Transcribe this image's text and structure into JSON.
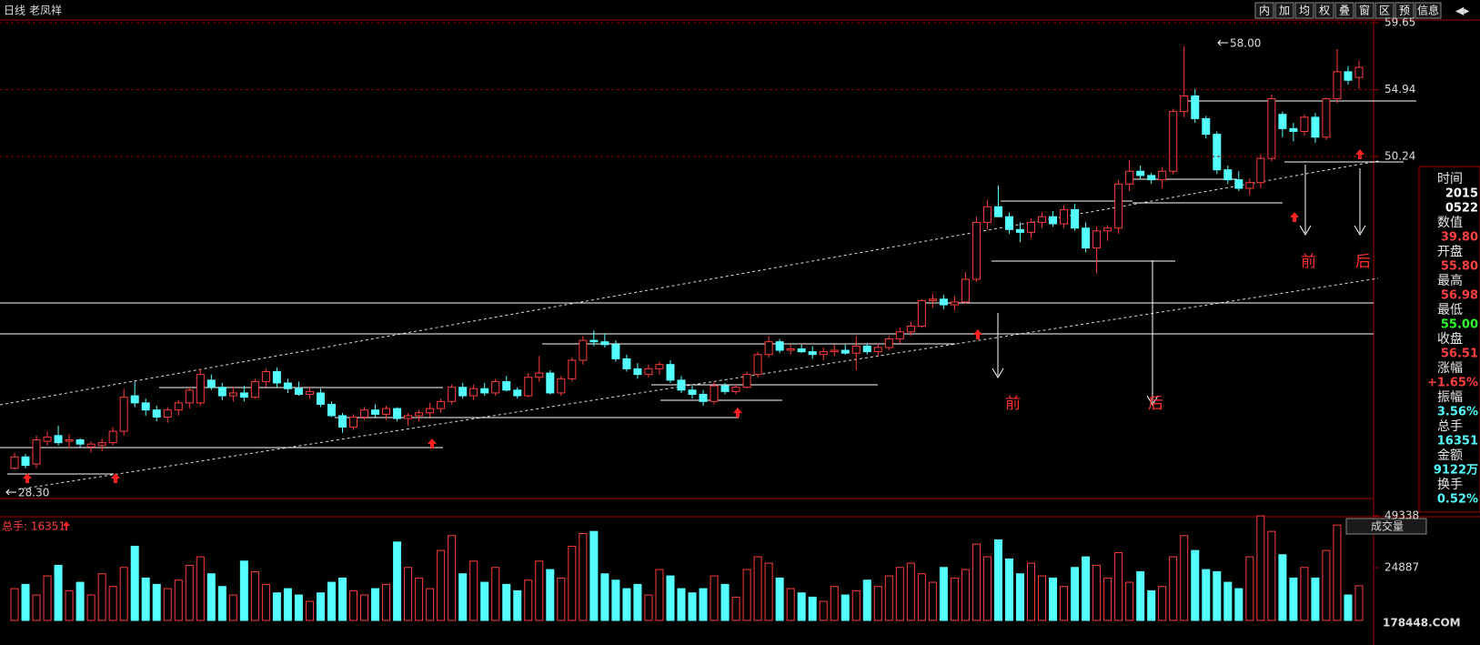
{
  "header": {
    "period": "日线",
    "name": "老凤祥",
    "buttons": [
      "内",
      "加",
      "均",
      "权",
      "叠",
      "窗",
      "区",
      "预",
      "信息"
    ]
  },
  "volume_header": {
    "label": "总手: 16351",
    "indicator": "成交量"
  },
  "info_panel": [
    [
      "时间",
      "2015"
    ],
    [
      "",
      "0522"
    ],
    [
      "数值",
      "39.80"
    ],
    [
      "开盘",
      "55.80"
    ],
    [
      "最高",
      "56.98"
    ],
    [
      "最低",
      "55.00"
    ],
    [
      "收盘",
      "56.51"
    ],
    [
      "涨幅",
      "+1.65%"
    ],
    [
      "振幅",
      "3.56%"
    ],
    [
      "总手",
      "16351"
    ],
    [
      "金额",
      "9122万"
    ],
    [
      "换手",
      "0.52%"
    ]
  ],
  "annotations": {
    "high_label": "58.00",
    "low_label": "28.30",
    "marks": [
      "前",
      "后",
      "前",
      "后"
    ]
  },
  "watermark": "178448.COM",
  "chart_data": [
    {
      "type": "candlestick",
      "up_color": "#ff3c3c",
      "down_color": "#54ffff",
      "grid": true,
      "ylim": [
        26.17,
        59.84
      ],
      "yticks": [
        59.65,
        54.94,
        50.24
      ],
      "open": [
        28.3,
        29.1,
        28.6,
        30.2,
        30.6,
        30.2,
        30.3,
        29.8,
        29.9,
        30.1,
        30.9,
        33.4,
        32.9,
        32.4,
        31.9,
        32.4,
        32.9,
        32.9,
        34.5,
        34.0,
        33.4,
        33.6,
        33.3,
        34.4,
        35.1,
        34.3,
        33.9,
        33.5,
        33.6,
        32.8,
        32.0,
        31.2,
        31.9,
        32.4,
        32.1,
        32.5,
        31.8,
        32.0,
        32.2,
        32.5,
        33.0,
        34.0,
        33.4,
        33.9,
        33.6,
        34.4,
        33.8,
        33.4,
        34.7,
        35.0,
        33.6,
        34.6,
        35.9,
        37.3,
        37.2,
        37.0,
        36.0,
        35.3,
        34.9,
        35.3,
        35.6,
        34.5,
        33.8,
        33.5,
        33.0,
        34.1,
        33.7,
        34.0,
        34.9,
        36.3,
        37.2,
        36.6,
        36.7,
        36.5,
        36.3,
        36.5,
        36.6,
        36.4,
        36.9,
        36.5,
        36.8,
        37.4,
        37.9,
        38.3,
        40.1,
        40.2,
        39.8,
        40.0,
        41.6,
        45.6,
        46.7,
        46.0,
        45.1,
        44.9,
        45.6,
        46.0,
        45.5,
        46.5,
        45.2,
        43.8,
        45.0,
        45.2,
        48.3,
        49.2,
        48.9,
        48.6,
        49.2,
        53.4,
        54.5,
        52.9,
        51.8,
        49.3,
        48.6,
        48.0,
        48.4,
        50.1,
        53.2,
        52.2,
        52.0,
        53.0,
        51.6,
        54.3,
        56.2,
        55.8
      ],
      "high": [
        29.4,
        29.3,
        30.6,
        30.9,
        31.3,
        30.7,
        30.4,
        30.2,
        30.4,
        31.2,
        33.9,
        34.4,
        33.2,
        32.7,
        32.6,
        33.1,
        34.0,
        35.3,
        34.9,
        34.3,
        34.0,
        34.1,
        34.6,
        35.3,
        35.4,
        34.6,
        34.4,
        34.0,
        33.9,
        33.0,
        32.2,
        32.1,
        32.6,
        32.8,
        32.7,
        32.6,
        32.2,
        32.4,
        32.9,
        33.2,
        34.2,
        34.3,
        34.2,
        34.3,
        34.6,
        34.8,
        34.0,
        35.0,
        36.2,
        35.2,
        34.8,
        36.1,
        37.6,
        38.0,
        37.8,
        37.3,
        36.3,
        35.7,
        35.6,
        35.8,
        35.9,
        34.8,
        34.1,
        33.8,
        34.4,
        34.3,
        34.2,
        35.1,
        36.5,
        37.6,
        37.4,
        37.0,
        37.0,
        36.9,
        36.8,
        37.0,
        37.0,
        37.6,
        37.1,
        37.0,
        37.6,
        38.2,
        38.6,
        40.2,
        40.6,
        40.5,
        40.4,
        42.1,
        46.0,
        47.2,
        48.2,
        46.3,
        45.6,
        45.9,
        46.3,
        46.4,
        46.8,
        46.9,
        45.6,
        45.3,
        45.4,
        48.6,
        50.0,
        49.6,
        49.1,
        49.5,
        53.6,
        58.0,
        55.0,
        53.1,
        52.0,
        49.6,
        49.2,
        48.7,
        50.4,
        54.6,
        53.4,
        52.6,
        53.2,
        53.3,
        54.4,
        57.8,
        56.6,
        56.98
      ],
      "low": [
        28.2,
        28.3,
        28.3,
        29.9,
        29.9,
        29.7,
        29.8,
        29.4,
        29.5,
        29.9,
        30.6,
        32.6,
        32.0,
        31.6,
        31.5,
        32.0,
        32.5,
        32.7,
        33.8,
        33.1,
        33.0,
        33.0,
        33.2,
        34.0,
        34.0,
        33.6,
        33.4,
        33.2,
        32.6,
        31.9,
        30.8,
        31.0,
        31.7,
        31.9,
        31.7,
        31.6,
        31.3,
        31.6,
        31.9,
        32.2,
        32.8,
        33.2,
        33.1,
        33.4,
        33.4,
        33.7,
        33.2,
        33.3,
        34.4,
        33.5,
        33.4,
        34.4,
        35.6,
        36.9,
        36.8,
        35.8,
        35.1,
        34.6,
        34.7,
        34.9,
        34.3,
        33.6,
        33.2,
        32.7,
        32.8,
        33.5,
        33.5,
        33.9,
        34.7,
        36.1,
        36.4,
        36.3,
        36.4,
        36.0,
        35.9,
        36.2,
        36.3,
        35.2,
        36.3,
        36.2,
        36.6,
        37.1,
        37.6,
        38.2,
        39.6,
        39.5,
        39.4,
        39.9,
        41.4,
        45.1,
        46.0,
        44.8,
        44.2,
        44.5,
        45.2,
        45.3,
        45.2,
        45.0,
        43.5,
        42.0,
        44.3,
        44.8,
        47.8,
        48.6,
        48.3,
        48.0,
        49.0,
        53.0,
        52.6,
        51.5,
        49.0,
        48.3,
        47.8,
        47.5,
        48.0,
        49.9,
        51.6,
        51.3,
        51.7,
        51.2,
        51.4,
        54.0,
        55.3,
        55.0
      ],
      "close": [
        29.1,
        28.5,
        30.3,
        30.5,
        30.1,
        30.3,
        30.0,
        30.0,
        30.1,
        30.9,
        33.3,
        32.9,
        32.4,
        31.9,
        32.4,
        32.9,
        33.8,
        34.9,
        34.0,
        33.4,
        33.6,
        33.3,
        34.4,
        35.1,
        34.3,
        33.9,
        33.5,
        33.7,
        32.8,
        32.0,
        31.2,
        31.9,
        32.4,
        32.1,
        32.5,
        31.8,
        32.0,
        32.2,
        32.5,
        33.0,
        34.0,
        33.4,
        33.9,
        33.6,
        34.4,
        33.8,
        33.4,
        34.7,
        35.0,
        33.6,
        34.6,
        35.9,
        37.3,
        37.2,
        37.0,
        36.0,
        35.3,
        34.9,
        35.3,
        35.6,
        34.5,
        33.8,
        33.5,
        33.0,
        34.1,
        33.7,
        34.0,
        34.9,
        36.3,
        37.2,
        36.6,
        36.7,
        36.5,
        36.3,
        36.5,
        36.6,
        36.4,
        36.9,
        36.5,
        36.8,
        37.4,
        37.9,
        38.3,
        40.1,
        40.2,
        39.8,
        40.0,
        41.6,
        45.6,
        46.7,
        46.0,
        45.1,
        44.9,
        45.6,
        46.0,
        45.5,
        46.5,
        45.2,
        43.8,
        45.0,
        45.2,
        48.3,
        49.2,
        48.9,
        48.6,
        49.2,
        53.4,
        54.5,
        52.9,
        51.8,
        49.3,
        48.6,
        48.0,
        48.4,
        50.1,
        54.3,
        52.2,
        52.0,
        53.0,
        51.6,
        54.3,
        56.2,
        55.6,
        56.51
      ]
    },
    {
      "type": "volume",
      "up_color": "#ff3c3c",
      "down_color": "#54ffff",
      "ylim": [
        0,
        51500
      ],
      "yticks": [
        49338,
        24887
      ],
      "values": [
        15000,
        17000,
        12000,
        21000,
        26000,
        14000,
        18000,
        12000,
        22000,
        16000,
        25000,
        35000,
        20000,
        17000,
        15000,
        19000,
        26000,
        30000,
        22000,
        16000,
        12000,
        28000,
        23000,
        17000,
        13000,
        15000,
        12000,
        9000,
        13000,
        18000,
        20000,
        14000,
        12000,
        15000,
        17000,
        37000,
        25000,
        20000,
        15000,
        33000,
        40000,
        22000,
        28000,
        18000,
        25000,
        17000,
        14000,
        19000,
        28000,
        24000,
        20000,
        35000,
        41000,
        42000,
        22000,
        19000,
        15000,
        17000,
        12000,
        24000,
        21000,
        15000,
        13000,
        15000,
        21000,
        17000,
        11000,
        24000,
        30000,
        27000,
        20000,
        15000,
        13000,
        11000,
        9000,
        16000,
        12000,
        14000,
        19000,
        16000,
        21000,
        25000,
        27000,
        22000,
        18000,
        25000,
        20000,
        24000,
        36000,
        30000,
        38000,
        29000,
        22000,
        27000,
        21000,
        20000,
        16000,
        25000,
        30000,
        26000,
        20000,
        32000,
        18000,
        23000,
        14000,
        16000,
        30000,
        40000,
        33000,
        24000,
        23000,
        18000,
        15000,
        30000,
        49338,
        42000,
        31000,
        20000,
        25000,
        20000,
        33000,
        45000,
        12000,
        16351
      ]
    }
  ]
}
